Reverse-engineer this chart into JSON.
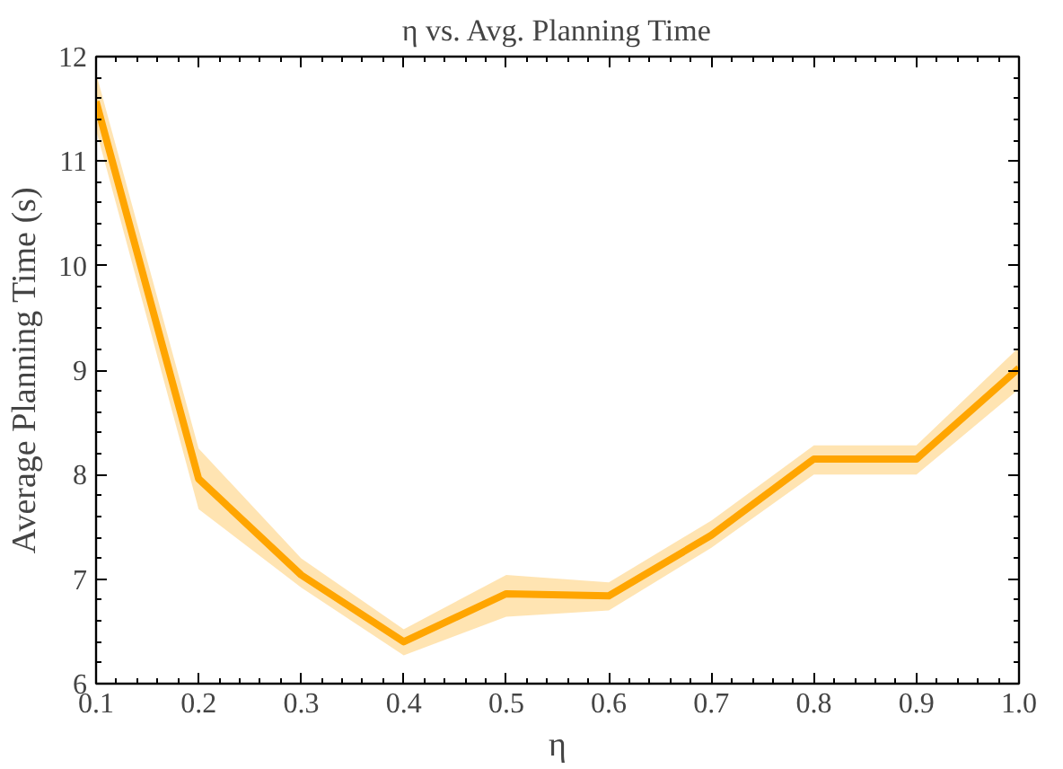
{
  "chart_data": {
    "type": "line",
    "title": "η vs. Avg. Planning Time",
    "xlabel": "η",
    "ylabel": "Average Planning Time (s)",
    "x": [
      0.1,
      0.2,
      0.3,
      0.4,
      0.5,
      0.6,
      0.7,
      0.8,
      0.9,
      1.0
    ],
    "series": [
      {
        "color": "#ffa500",
        "values": [
          11.57,
          7.96,
          7.04,
          6.4,
          6.86,
          6.84,
          7.42,
          8.15,
          8.15,
          9.02
        ],
        "lower": [
          11.3,
          7.67,
          6.92,
          6.27,
          6.64,
          6.7,
          7.3,
          8.0,
          8.0,
          8.82
        ],
        "upper": [
          11.84,
          8.25,
          7.2,
          6.52,
          7.04,
          6.97,
          7.56,
          8.28,
          8.28,
          9.22
        ]
      }
    ],
    "xlim": [
      0.1,
      1.0
    ],
    "ylim": [
      6,
      12
    ],
    "xticks": [
      0.1,
      0.2,
      0.3,
      0.4,
      0.5,
      0.6,
      0.7,
      0.8,
      0.9,
      {
        "value": 1,
        "label": "1.0"
      }
    ],
    "yticks": [
      6,
      7,
      8,
      9,
      10,
      11,
      12
    ],
    "marker": "none",
    "line_style": "solid"
  }
}
